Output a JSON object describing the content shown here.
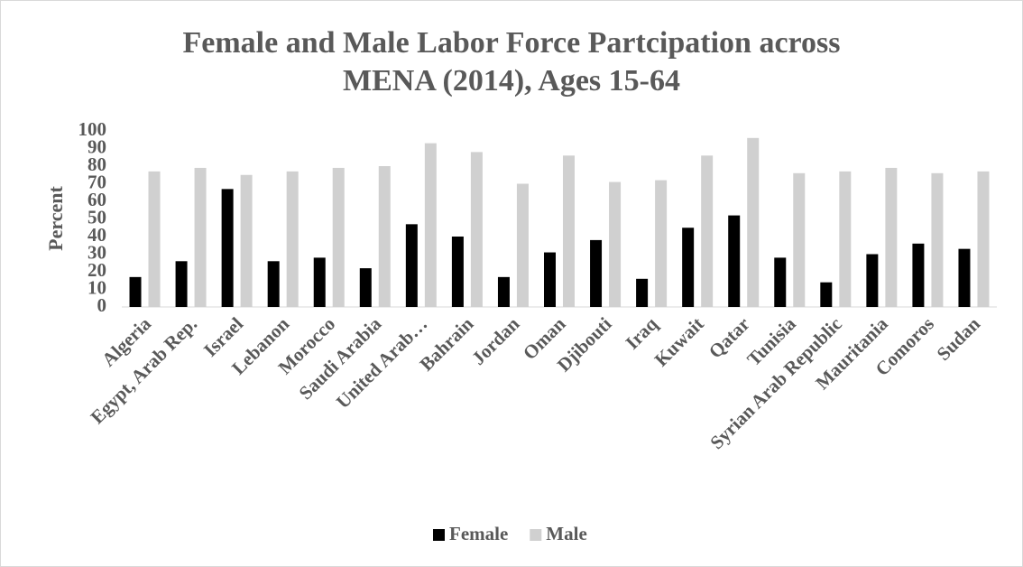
{
  "chart_data": {
    "type": "bar",
    "title": "Female and Male Labor Force Partcipation across MENA (2014), Ages 15-64",
    "y_label": "Percent",
    "categories": [
      "Algeria",
      "Egypt, Arab Rep.",
      "Israel",
      "Lebanon",
      "Morocco",
      "Saudi Arabia",
      "United Arab…",
      "Bahrain",
      "Jordan",
      "Oman",
      "Djibouti",
      "Iraq",
      "Kuwait",
      "Qatar",
      "Tunisia",
      "Syrian Arab Republic",
      "Mauritania",
      "Comoros",
      "Sudan"
    ],
    "series": [
      {
        "name": "Female",
        "color": "#000000",
        "values": [
          17,
          26,
          67,
          26,
          28,
          22,
          47,
          40,
          17,
          31,
          38,
          16,
          45,
          52,
          28,
          14,
          30,
          36,
          33
        ]
      },
      {
        "name": "Male",
        "color": "#d0d0d0",
        "values": [
          77,
          79,
          75,
          77,
          79,
          80,
          93,
          88,
          70,
          86,
          71,
          72,
          86,
          96,
          76,
          77,
          79,
          76,
          77
        ]
      }
    ],
    "ylim": [
      0,
      100
    ],
    "yticks": [
      0,
      10,
      20,
      30,
      40,
      50,
      60,
      70,
      80,
      90,
      100
    ],
    "grid": false,
    "legend": "bottom"
  }
}
